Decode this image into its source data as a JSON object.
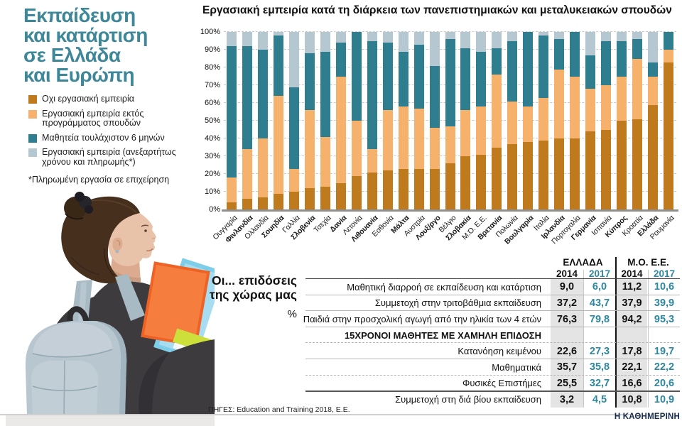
{
  "title": {
    "lines": [
      "Εκπαίδευση",
      "και κατάρτιση",
      "σε Ελλάδα",
      "και Ευρώπη"
    ]
  },
  "legend": [
    {
      "label": "Οχι εργασιακή εμπειρία",
      "color": "#bf7a1e"
    },
    {
      "label": "Εργασιακή εμπειρία εκτός\nπρογράμματος σπουδών",
      "color": "#f6b26c"
    },
    {
      "label": "Μαθητεία τουλάχιστον 6 μηνών",
      "color": "#2e7e90"
    },
    {
      "label": "Εργασιακή εμπειρία (ανεξαρτήτως\nχρόνου και πληρωμής*)",
      "color": "#b5c8d1"
    }
  ],
  "footnote": "*Πληρωμένη εργασία σε επιχείρηση",
  "chart_data": {
    "type": "bar",
    "stacked": true,
    "title": "Εργασιακή εμπειρία κατά τη διάρκεια των πανεπιστημιακών και μεταλυκειακών σπουδών",
    "ylim": [
      0,
      100
    ],
    "y_ticks": [
      "0%",
      "10%",
      "20%",
      "30%",
      "40%",
      "50%",
      "60%",
      "70%",
      "80%",
      "90%",
      "100%"
    ],
    "grid": true,
    "legend_position": "left",
    "categories": [
      "Ουγγαρία",
      "Φινλανδία",
      "Ολλανδία",
      "Σουηδία",
      "Γαλλία",
      "Σλοβενία",
      "Τσεχία",
      "Δανία",
      "Λετονία",
      "Λιθουανία",
      "Εσθονία",
      "Μάλτα",
      "Αυστρία",
      "Λουξ/ργο",
      "Βέλγιο",
      "Σλοβακία",
      "Μ.Ό. Ε.Ε.",
      "Βρετανία",
      "Πολωνία",
      "Βουλγαρία",
      "Ιταλία",
      "Ιρλανδία",
      "Πορτογαλία",
      "Γερμανία",
      "Ισπανία",
      "Κύπρος",
      "Κροατία",
      "Ελλάδα",
      "Ρουμανία"
    ],
    "bold_categories": [
      "Φινλανδία",
      "Σουηδία",
      "Σλοβενία",
      "Δανία",
      "Λιθουανία",
      "Μάλτα",
      "Λουξ/ργο",
      "Σλοβακία",
      "Βρετανία",
      "Βουλγαρία",
      "Ιρλανδία",
      "Γερμανία",
      "Κύπρος",
      "Ελλάδα"
    ],
    "series": [
      {
        "name": "Οχι εργασιακή εμπειρία",
        "color": "#bf7a1e",
        "values": [
          4,
          6,
          7,
          9,
          10,
          12,
          13,
          15,
          19,
          21,
          22,
          23,
          23,
          23,
          26,
          30,
          31,
          35,
          37,
          38,
          39,
          40,
          40,
          44,
          45,
          50,
          51,
          59,
          83
        ]
      },
      {
        "name": "Εργασιακή εμπειρία εκτός προγράμματος σπουδών",
        "color": "#f6b26c",
        "values": [
          14,
          28,
          33,
          55,
          13,
          44,
          28,
          60,
          31,
          13,
          34,
          35,
          34,
          23,
          21,
          26,
          27,
          41,
          24,
          20,
          24,
          39,
          35,
          24,
          25,
          25,
          34,
          16,
          7
        ]
      },
      {
        "name": "Μαθητεία τουλάχιστον 6 μηνών",
        "color": "#2e7e90",
        "values": [
          74,
          58,
          50,
          34,
          46,
          32,
          48,
          19,
          50,
          61,
          38,
          31,
          36,
          35,
          49,
          35,
          31,
          15,
          34,
          42,
          35,
          17,
          25,
          19,
          25,
          20,
          11,
          8,
          10
        ]
      },
      {
        "name": "Εργασιακή εμπειρία (ανεξαρτήτως χρόνου και πληρωμής*)",
        "color": "#b5c8d1",
        "values": [
          8,
          8,
          10,
          2,
          31,
          12,
          11,
          6,
          0,
          5,
          6,
          11,
          7,
          19,
          4,
          9,
          11,
          9,
          5,
          0,
          2,
          4,
          0,
          13,
          5,
          5,
          4,
          17,
          0
        ]
      }
    ]
  },
  "stats_table": {
    "intro_lines": [
      "Οι... επιδόσεις",
      "της χώρας μας"
    ],
    "unit": "%",
    "groups": [
      "ΕΛΛΑΔΑ",
      "Μ.Ο. Ε.Ε."
    ],
    "year_cols": [
      "2014",
      "2017",
      "2014",
      "2017"
    ],
    "year_2017_color": "#2d87a0",
    "rows": [
      {
        "label": "Μαθητική διαρροή σε εκπαίδευση και κατάρτιση",
        "values": [
          "9,0",
          "6,0",
          "11,2",
          "10,6"
        ],
        "sep_after": "solid"
      },
      {
        "label": "Συμμετοχή στην τριτοβάθμια εκπαίδευση",
        "values": [
          "37,2",
          "43,7",
          "37,9",
          "39,9"
        ],
        "sep_after": "solid"
      },
      {
        "label": "Παιδιά στην προσχολική αγωγή από την ηλικία των 4 ετών",
        "values": [
          "76,3",
          "79,8",
          "94,2",
          "95,3"
        ],
        "sep_after": "solid"
      },
      {
        "label": "15ΧΡΟΝΟΙ ΜΑΘΗΤΕΣ ΜΕ ΧΑΜΗΛΗ ΕΠΙΔΟΣΗ",
        "section": true,
        "values": [
          "",
          "",
          "",
          ""
        ],
        "sep_after": "dashed"
      },
      {
        "label": "Κατανόηση κειμένου",
        "values": [
          "22,6",
          "27,3",
          "17,8",
          "19,7"
        ],
        "sep_after": "solid"
      },
      {
        "label": "Μαθηματικά",
        "values": [
          "35,7",
          "35,8",
          "22,1",
          "22,2"
        ],
        "sep_after": "dashed"
      },
      {
        "label": "Φυσικές Επιστήμες",
        "values": [
          "25,5",
          "32,7",
          "16,6",
          "20,6"
        ],
        "sep_after": "strong"
      },
      {
        "label": "Συμμετοχή στη διά βίου εκπαίδευση",
        "values": [
          "3,2",
          "4,5",
          "10,8",
          "10,9"
        ],
        "sep_after": "none"
      }
    ]
  },
  "footer": {
    "sources": "ΠΗΓΕΣ: Education and Training 2018, Ε.Ε.",
    "brand": "Η ΚΑΘΗΜΕΡΙΝΗ"
  }
}
